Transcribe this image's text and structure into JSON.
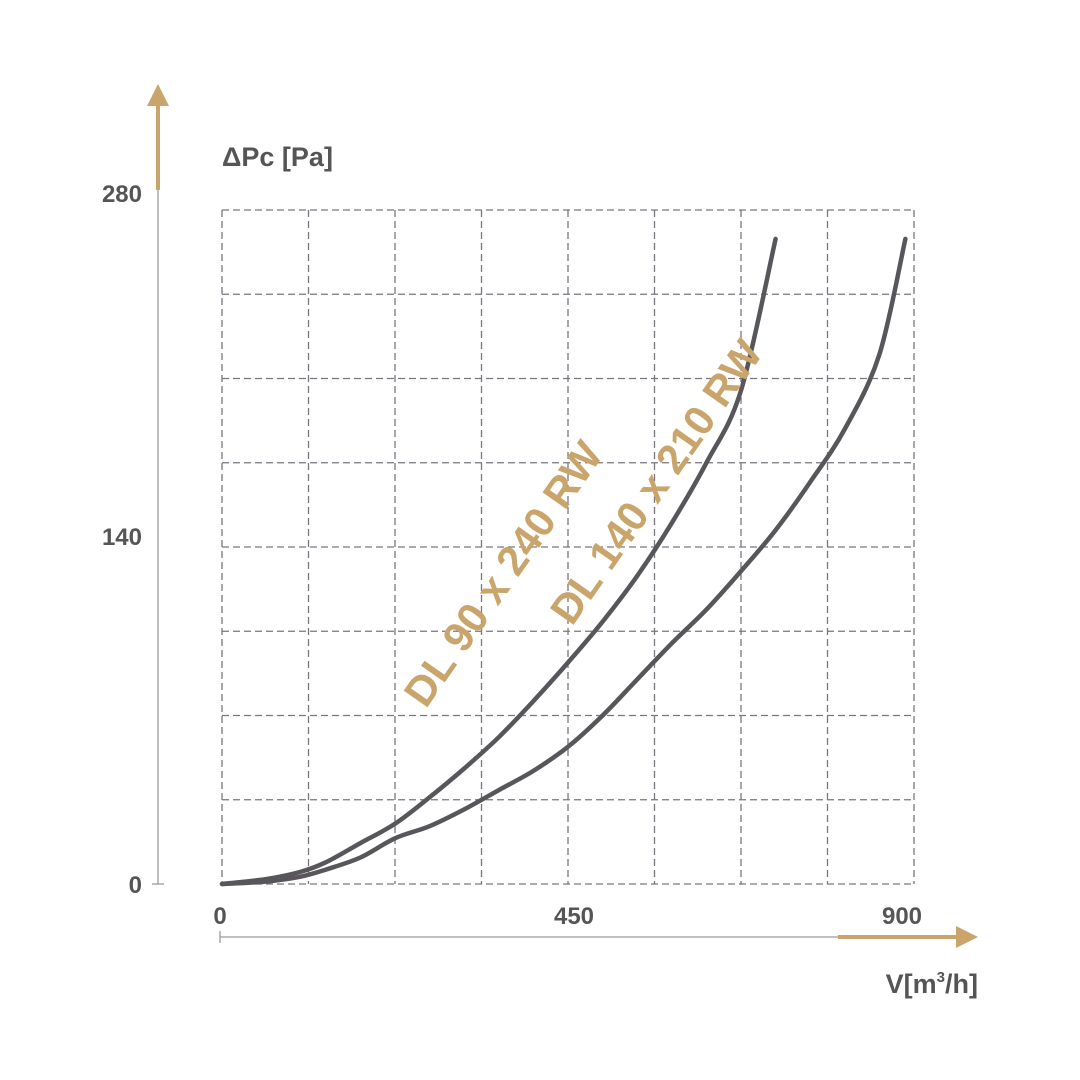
{
  "colors": {
    "accent": "#c9a56b",
    "curve": "#58565a",
    "text": "#555555",
    "grid": "#7a7680"
  },
  "chart_data": {
    "type": "line",
    "ylabel": "ΔPc [Pa]",
    "xlabel_main": "V[m",
    "xlabel_sup": "3",
    "xlabel_tail": "/h]",
    "xlim": [
      0,
      900
    ],
    "ylim": [
      0,
      280
    ],
    "xticks": [
      "0",
      "450",
      "900"
    ],
    "yticks": [
      "0",
      "140",
      "280"
    ],
    "grid": true,
    "series": [
      {
        "name": "DL 90 x 240 RW",
        "x": [
          0,
          50,
          90,
          120,
          160,
          200,
          240,
          280,
          320,
          360,
          400,
          440,
          480,
          520,
          560,
          600,
          640
        ],
        "y": [
          0,
          2,
          5,
          9,
          17,
          25,
          36,
          48,
          61,
          76,
          92,
          109,
          128,
          150,
          175,
          205,
          268
        ]
      },
      {
        "name": "DL 140 x 210 RW",
        "x": [
          0,
          50,
          90,
          120,
          160,
          200,
          240,
          280,
          320,
          360,
          400,
          440,
          480,
          520,
          560,
          600,
          640,
          680,
          720,
          760,
          790
        ],
        "y": [
          0,
          1,
          3,
          6,
          11,
          19,
          24,
          31,
          39,
          47,
          57,
          70,
          85,
          100,
          114,
          130,
          147,
          167,
          189,
          220,
          268
        ]
      }
    ]
  }
}
